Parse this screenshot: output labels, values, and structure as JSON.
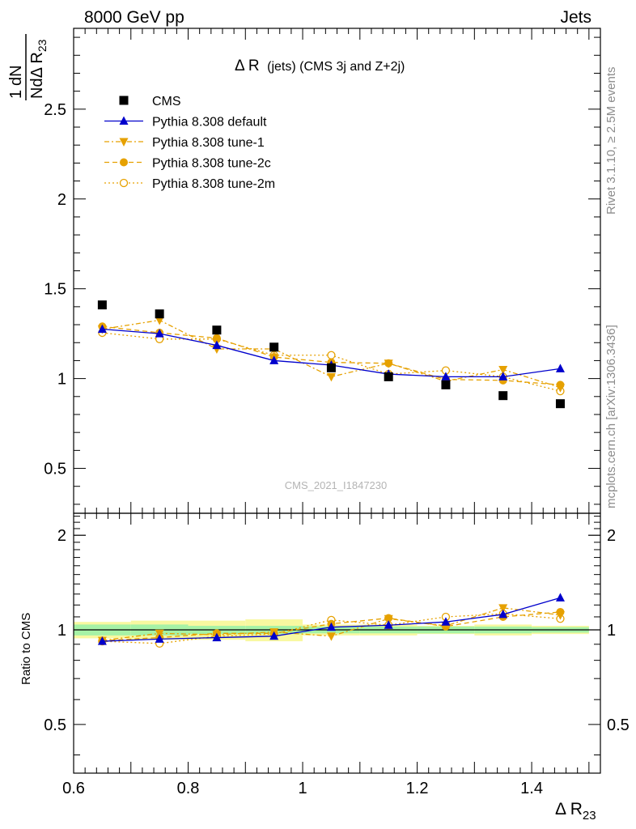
{
  "header": {
    "left": "8000 GeV pp",
    "right": "Jets"
  },
  "side_labels": {
    "rivet": "Rivet 3.1.10, ≥ 2.5M events",
    "mcplots": "mcplots.cern.ch [arXiv:1306.3436]"
  },
  "chart_data": {
    "type": "scatter",
    "title_prefix": "Δ R",
    "title_suffix": "(jets) (CMS 3j and Z+2j)",
    "watermark": "CMS_2021_I1847230",
    "ylabel_top": "1",
    "ylabel_frac": "dN",
    "ylabel_den": "NdΔ R",
    "ylabel_sub": "23",
    "ratio_ylabel": "Ratio to CMS",
    "xlabel_main": "Δ R",
    "xlabel_sub": "23",
    "xlim": [
      0.6,
      1.52
    ],
    "ylim": [
      0.25,
      2.95
    ],
    "ratio_ylim": [
      0.35,
      2.35
    ],
    "x_ticks": [
      "0.6",
      "0.8",
      "1",
      "1.2",
      "1.4"
    ],
    "y_ticks": [
      "0.5",
      "1",
      "1.5",
      "2",
      "2.5"
    ],
    "ratio_ticks": [
      "0.5",
      "1",
      "2"
    ],
    "grid": false,
    "legend_position": "top-left",
    "x": [
      0.65,
      0.75,
      0.85,
      0.95,
      1.05,
      1.15,
      1.25,
      1.35,
      1.45
    ],
    "band_inner": [
      0.04,
      0.04,
      0.03,
      0.03,
      0.025,
      0.025,
      0.025,
      0.025,
      0.02
    ],
    "band_outer": [
      0.06,
      0.07,
      0.07,
      0.08,
      0.04,
      0.04,
      0.03,
      0.04,
      0.03
    ],
    "series": [
      {
        "name": "CMS",
        "color": "#000000",
        "marker": "square",
        "line": "none",
        "values": [
          1.41,
          1.36,
          1.27,
          1.175,
          1.06,
          1.01,
          0.965,
          0.905,
          0.86
        ],
        "ratio": [
          1,
          1,
          1,
          1,
          1,
          1,
          1,
          1,
          1
        ]
      },
      {
        "name": "Pythia 8.308 default",
        "color": "#0000cc",
        "marker": "triangle-up",
        "line": "solid",
        "values": [
          1.275,
          1.25,
          1.185,
          1.1,
          1.075,
          1.025,
          1.01,
          1.01,
          1.055
        ],
        "ratio": [
          0.92,
          0.935,
          0.945,
          0.955,
          1.02,
          1.035,
          1.06,
          1.12,
          1.265
        ]
      },
      {
        "name": "Pythia 8.308 tune-1",
        "color": "#e6a100",
        "marker": "triangle-down",
        "line": "dashdot",
        "values": [
          1.275,
          1.325,
          1.165,
          1.165,
          1.01,
          1.085,
          0.985,
          1.05,
          0.95
        ],
        "ratio": [
          0.925,
          0.975,
          0.965,
          0.985,
          0.955,
          1.085,
          1.03,
          1.175,
          1.115
        ]
      },
      {
        "name": "Pythia 8.308 tune-2c",
        "color": "#e6a100",
        "marker": "circle",
        "line": "dashed",
        "values": [
          1.29,
          1.255,
          1.225,
          1.12,
          1.09,
          1.085,
          0.995,
          0.99,
          0.965
        ],
        "ratio": [
          0.925,
          0.945,
          0.975,
          0.975,
          1.045,
          1.09,
          1.025,
          1.1,
          1.14
        ]
      },
      {
        "name": "Pythia 8.308 tune-2m",
        "color": "#e6a100",
        "marker": "circle-open",
        "line": "dotted",
        "values": [
          1.255,
          1.22,
          1.22,
          1.13,
          1.13,
          1.025,
          1.045,
          1.01,
          0.93
        ],
        "ratio": [
          0.92,
          0.905,
          0.955,
          0.97,
          1.075,
          1.035,
          1.1,
          1.125,
          1.085
        ]
      }
    ]
  }
}
